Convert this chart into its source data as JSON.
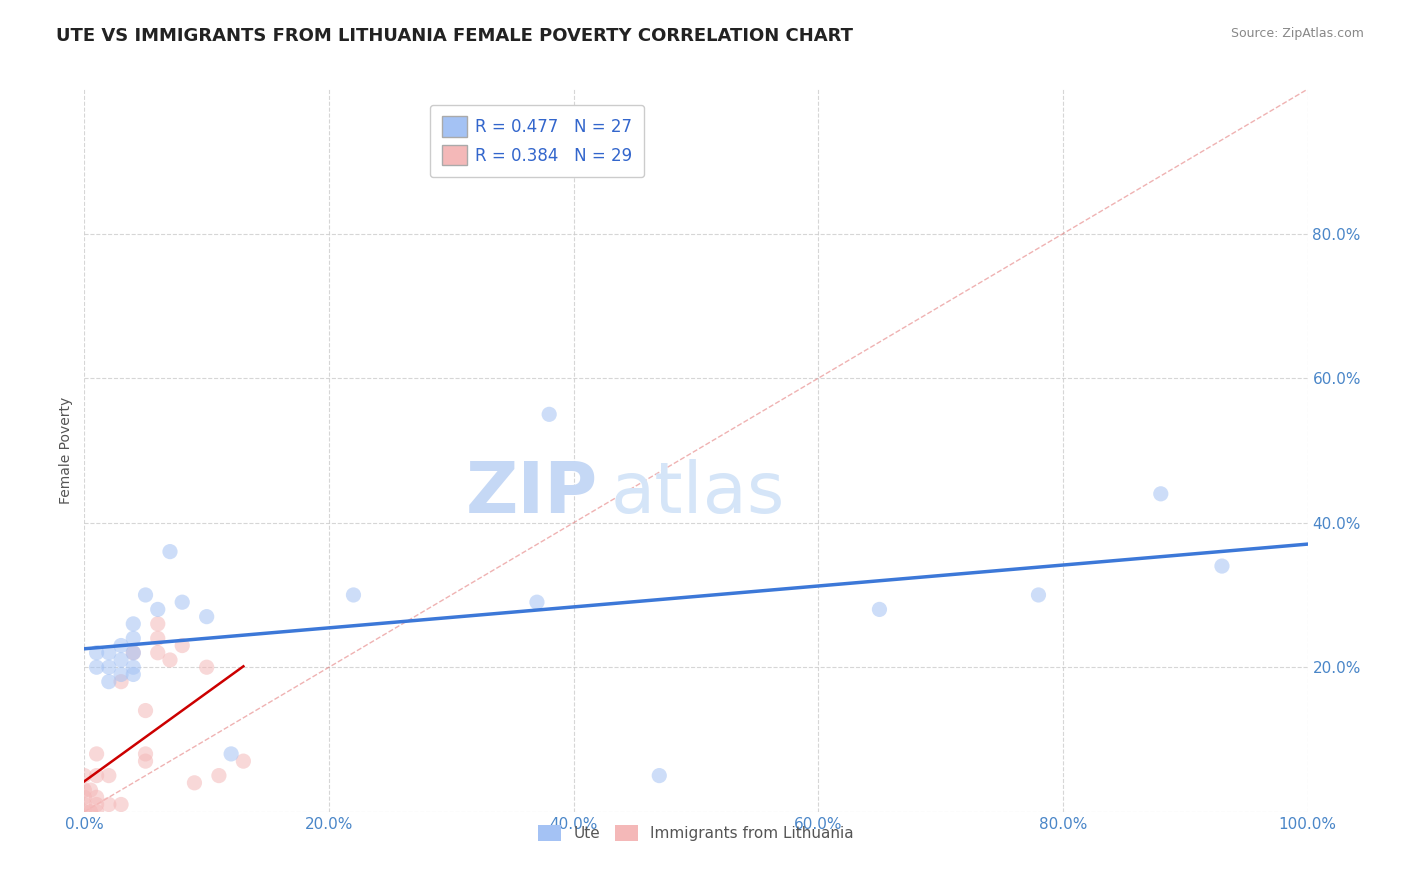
{
  "title": "UTE VS IMMIGRANTS FROM LITHUANIA FEMALE POVERTY CORRELATION CHART",
  "source_text": "Source: ZipAtlas.com",
  "ylabel": "Female Poverty",
  "xlim": [
    0,
    1.0
  ],
  "ylim": [
    0,
    1.0
  ],
  "xticks": [
    0.0,
    0.2,
    0.4,
    0.6,
    0.8,
    1.0
  ],
  "yticks": [
    0.0,
    0.2,
    0.4,
    0.6,
    0.8
  ],
  "xtick_labels": [
    "0.0%",
    "20.0%",
    "40.0%",
    "60.0%",
    "80.0%",
    "100.0%"
  ],
  "ytick_labels": [
    "",
    "20.0%",
    "40.0%",
    "60.0%",
    "80.0%"
  ],
  "legend_r1": "R = 0.477",
  "legend_n1": "N = 27",
  "legend_r2": "R = 0.384",
  "legend_n2": "N = 29",
  "legend_label1": "Ute",
  "legend_label2": "Immigrants from Lithuania",
  "blue_color": "#a4c2f4",
  "pink_color": "#f4b8b8",
  "blue_line_color": "#3c78d8",
  "pink_line_color": "#cc0000",
  "diag_color": "#e06666",
  "watermark_zip": "ZIP",
  "watermark_atlas": "atlas",
  "ute_x": [
    0.01,
    0.01,
    0.02,
    0.02,
    0.02,
    0.03,
    0.03,
    0.03,
    0.04,
    0.04,
    0.04,
    0.04,
    0.04,
    0.05,
    0.06,
    0.07,
    0.08,
    0.1,
    0.12,
    0.22,
    0.37,
    0.38,
    0.47,
    0.65,
    0.78,
    0.88,
    0.93
  ],
  "ute_y": [
    0.2,
    0.22,
    0.18,
    0.2,
    0.22,
    0.19,
    0.21,
    0.23,
    0.19,
    0.2,
    0.22,
    0.24,
    0.26,
    0.3,
    0.28,
    0.36,
    0.29,
    0.27,
    0.08,
    0.3,
    0.29,
    0.55,
    0.05,
    0.28,
    0.3,
    0.44,
    0.34
  ],
  "lith_x": [
    0.0,
    0.0,
    0.0,
    0.0,
    0.0,
    0.005,
    0.005,
    0.01,
    0.01,
    0.01,
    0.01,
    0.01,
    0.02,
    0.02,
    0.03,
    0.03,
    0.04,
    0.05,
    0.05,
    0.05,
    0.06,
    0.06,
    0.06,
    0.07,
    0.08,
    0.09,
    0.1,
    0.11,
    0.13
  ],
  "lith_y": [
    0.0,
    0.01,
    0.02,
    0.03,
    0.05,
    0.0,
    0.03,
    0.0,
    0.01,
    0.02,
    0.05,
    0.08,
    0.01,
    0.05,
    0.01,
    0.18,
    0.22,
    0.07,
    0.08,
    0.14,
    0.22,
    0.24,
    0.26,
    0.21,
    0.23,
    0.04,
    0.2,
    0.05,
    0.07
  ],
  "background_color": "#ffffff",
  "grid_color": "#cccccc",
  "title_fontsize": 13,
  "axis_label_fontsize": 10,
  "tick_fontsize": 11,
  "watermark_fontsize_zip": 48,
  "watermark_fontsize_atlas": 48,
  "dot_size": 120,
  "dot_alpha": 0.55
}
